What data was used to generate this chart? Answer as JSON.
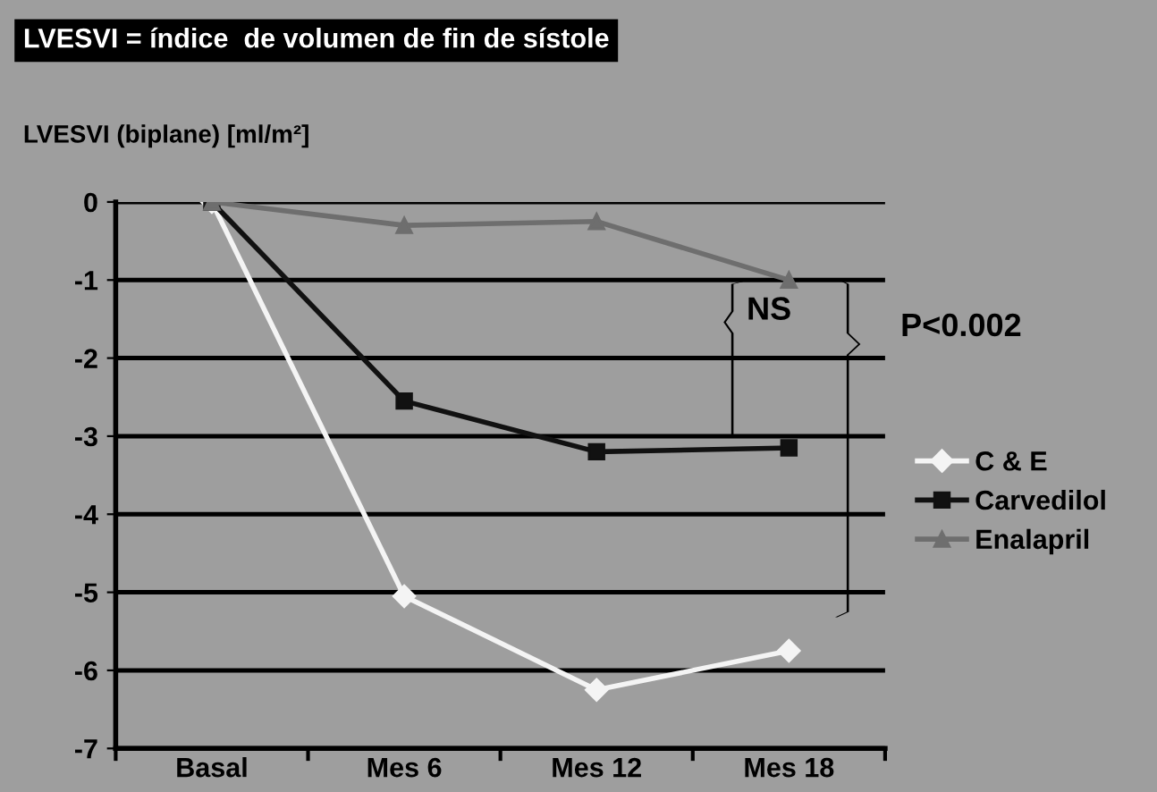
{
  "chart_data": {
    "type": "line",
    "title": "LVESVI = índice  de volumen de fin de sístole",
    "ylabel": "LVESVI (biplane) [ml/m²]",
    "categories": [
      "Basal",
      "Mes 6",
      "Mes 12",
      "Mes 18"
    ],
    "series": [
      {
        "name": "C & E",
        "color": "#f4f4f4",
        "marker": "diamond",
        "values": [
          0,
          -5.05,
          -6.25,
          -5.75
        ]
      },
      {
        "name": "Carvedilol",
        "color": "#111111",
        "marker": "square",
        "values": [
          0,
          -2.55,
          -3.2,
          -3.15
        ]
      },
      {
        "name": "Enalapril",
        "color": "#6e6e6e",
        "marker": "triangle",
        "values": [
          0,
          -0.3,
          -0.25,
          -1.0
        ]
      }
    ],
    "ylim": [
      -7,
      0
    ],
    "yticks": [
      0,
      -1,
      -2,
      -3,
      -4,
      -5,
      -6,
      -7
    ],
    "grid": "y",
    "legend": "right",
    "line_style": "solid",
    "annotations": [
      "NS",
      "P<0.002"
    ]
  }
}
